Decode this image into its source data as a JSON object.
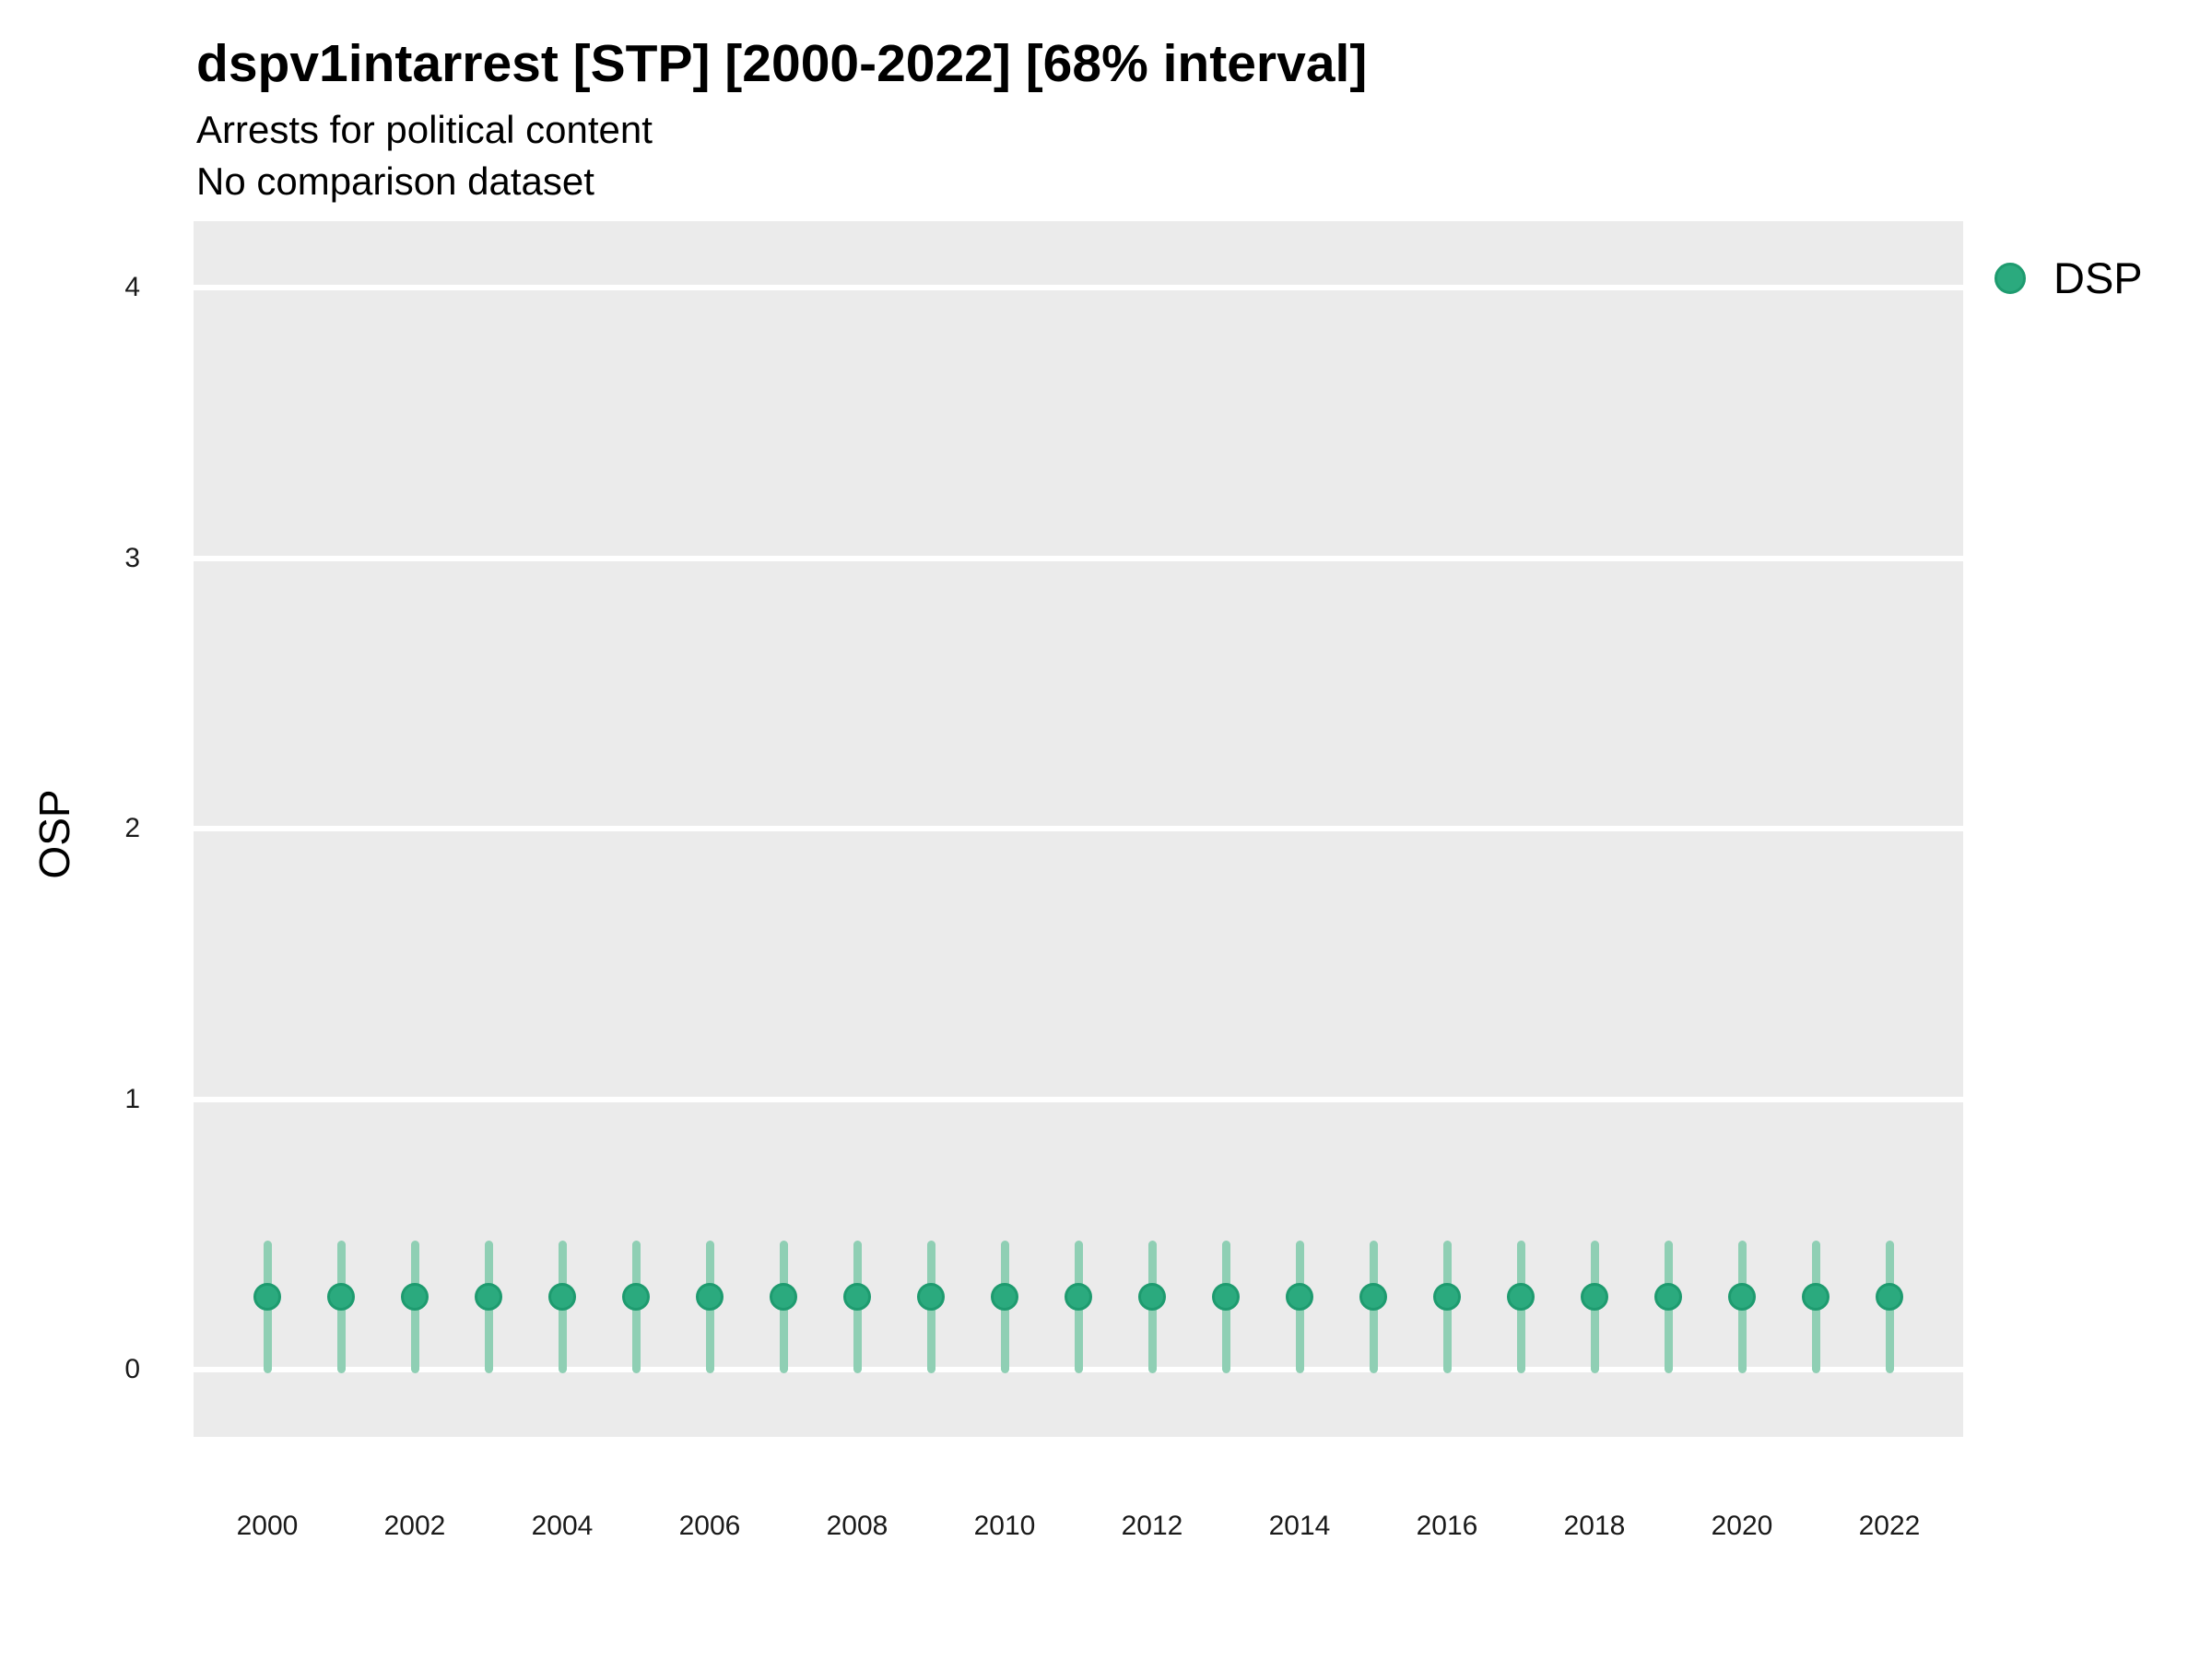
{
  "chart_data": {
    "type": "scatter",
    "title": "dspv1intarrest [STP] [2000-2022] [68% interval]",
    "subtitle": [
      "Arrests for political content",
      "No comparison dataset"
    ],
    "ylabel": "OSP",
    "xlabel": "",
    "interval_label": "68% interval",
    "x": [
      2000,
      2001,
      2002,
      2003,
      2004,
      2005,
      2006,
      2007,
      2008,
      2009,
      2010,
      2011,
      2012,
      2013,
      2014,
      2015,
      2016,
      2017,
      2018,
      2019,
      2020,
      2021,
      2022
    ],
    "series": [
      {
        "name": "DSP",
        "values": [
          0.27,
          0.27,
          0.27,
          0.27,
          0.27,
          0.27,
          0.27,
          0.27,
          0.27,
          0.27,
          0.27,
          0.27,
          0.27,
          0.27,
          0.27,
          0.27,
          0.27,
          0.27,
          0.27,
          0.27,
          0.27,
          0.27,
          0.27
        ],
        "lower": [
          0.0,
          0.0,
          0.0,
          0.0,
          0.0,
          0.0,
          0.0,
          0.0,
          0.0,
          0.0,
          0.0,
          0.0,
          0.0,
          0.0,
          0.0,
          0.0,
          0.0,
          0.0,
          0.0,
          0.0,
          0.0,
          0.0,
          0.0
        ],
        "upper": [
          0.46,
          0.46,
          0.46,
          0.46,
          0.46,
          0.46,
          0.46,
          0.46,
          0.46,
          0.46,
          0.46,
          0.46,
          0.46,
          0.46,
          0.46,
          0.46,
          0.46,
          0.46,
          0.46,
          0.46,
          0.46,
          0.46,
          0.46
        ],
        "point_fill": "#2BAA7E",
        "point_stroke": "#1E9B6F",
        "interval_color": "#8FCFB4"
      }
    ],
    "x_tick_labels": [
      "2000",
      "2002",
      "2004",
      "2006",
      "2008",
      "2010",
      "2012",
      "2014",
      "2016",
      "2018",
      "2020",
      "2022"
    ],
    "y_tick_labels": [
      "0",
      "1",
      "2",
      "3",
      "4"
    ],
    "y_ticks": [
      0,
      1,
      2,
      3,
      4
    ],
    "ylim": [
      -0.25,
      4.25
    ],
    "xlim": [
      1999,
      2023
    ],
    "grid": {
      "horizontal_major": true,
      "vertical": false,
      "minor": false
    },
    "panel_background": "#EBEBEB",
    "gridline_color": "#FFFFFF",
    "legend": {
      "position": "right-top",
      "entries": [
        {
          "label": "DSP",
          "color": "#2BAA7E"
        }
      ]
    }
  }
}
